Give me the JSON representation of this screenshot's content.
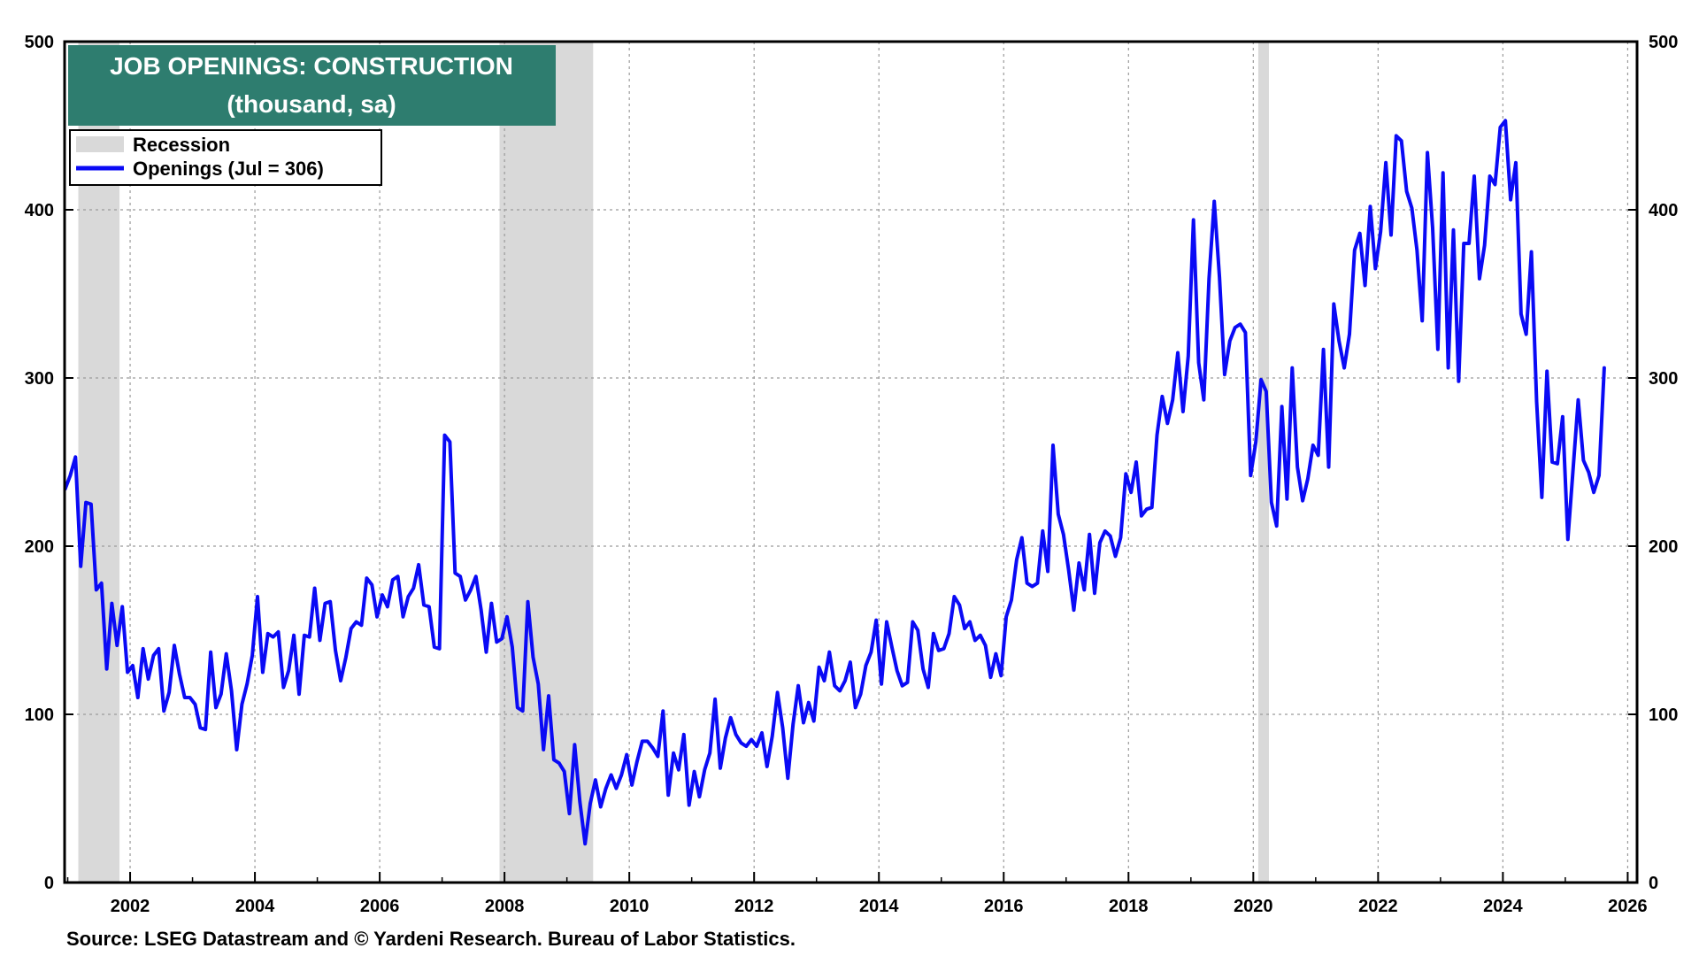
{
  "colors": {
    "series": "#0a0af5",
    "recession": "#d9d9d9",
    "title_bg": "#2e7d6f",
    "grid": "#9a9a9a"
  },
  "source": "Source: LSEG Datastream and © Yardeni Research. Bureau of Labor Statistics.",
  "chart_data": {
    "type": "line",
    "title": "JOB OPENINGS: CONSTRUCTION",
    "subtitle": "(thousand, sa)",
    "ylim": [
      0,
      500
    ],
    "xlim": [
      2000.95,
      2026.15
    ],
    "yticks": [
      0,
      100,
      200,
      300,
      400,
      500
    ],
    "ytick_labels": [
      "0",
      "100",
      "200",
      "300",
      "400",
      "500"
    ],
    "xticks": [
      2002,
      2004,
      2006,
      2008,
      2010,
      2012,
      2014,
      2016,
      2018,
      2020,
      2022,
      2024,
      2026
    ],
    "xtick_labels": [
      "2002",
      "2004",
      "2006",
      "2008",
      "2010",
      "2012",
      "2014",
      "2016",
      "2018",
      "2020",
      "2022",
      "2024",
      "2026"
    ],
    "grid": true,
    "legend": {
      "position": "top-left",
      "recession_label": "Recession",
      "series_label": "Openings (Jul = 306)"
    },
    "recessions": [
      [
        2001.17,
        2001.83
      ],
      [
        2007.92,
        2009.42
      ],
      [
        2020.08,
        2020.25
      ]
    ],
    "series": [
      {
        "name": "Openings",
        "start": 2000.958,
        "step": 0.08333,
        "values": [
          234,
          242,
          253,
          188,
          226,
          225,
          174,
          178,
          127,
          166,
          141,
          164,
          125,
          129,
          110,
          139,
          121,
          135,
          139,
          102,
          113,
          141,
          124,
          110,
          110,
          106,
          92,
          91,
          137,
          104,
          112,
          136,
          114,
          79,
          106,
          118,
          135,
          170,
          125,
          148,
          146,
          149,
          116,
          126,
          147,
          112,
          147,
          146,
          175,
          144,
          166,
          167,
          138,
          120,
          134,
          151,
          155,
          153,
          181,
          177,
          158,
          171,
          164,
          180,
          182,
          158,
          170,
          175,
          189,
          165,
          164,
          140,
          139,
          266,
          262,
          184,
          182,
          168,
          174,
          182,
          162,
          137,
          166,
          143,
          145,
          158,
          140,
          104,
          102,
          167,
          134,
          118,
          79,
          111,
          73,
          71,
          66,
          41,
          82,
          48,
          23,
          47,
          61,
          45,
          56,
          64,
          56,
          64,
          76,
          58,
          72,
          84,
          84,
          80,
          75,
          102,
          52,
          77,
          67,
          88,
          46,
          66,
          51,
          67,
          77,
          109,
          68,
          86,
          98,
          88,
          83,
          81,
          85,
          81,
          89,
          69,
          87,
          113,
          92,
          62,
          94,
          117,
          95,
          107,
          96,
          128,
          120,
          137,
          117,
          114,
          120,
          131,
          104,
          112,
          129,
          137,
          156,
          118,
          155,
          140,
          126,
          117,
          119,
          155,
          150,
          127,
          116,
          148,
          138,
          139,
          148,
          170,
          165,
          151,
          155,
          144,
          147,
          141,
          122,
          136,
          123,
          158,
          168,
          192,
          205,
          178,
          176,
          178,
          209,
          185,
          260,
          219,
          207,
          186,
          162,
          190,
          174,
          207,
          172,
          202,
          209,
          206,
          194,
          205,
          243,
          232,
          250,
          218,
          222,
          223,
          266,
          289,
          273,
          287,
          315,
          280,
          313,
          394,
          309,
          287,
          359,
          405,
          360,
          302,
          322,
          330,
          332,
          327,
          242,
          262,
          299,
          292,
          226,
          212,
          283,
          228,
          306,
          247,
          227,
          240,
          260,
          254,
          317,
          247,
          344,
          322,
          306,
          326,
          376,
          386,
          355,
          402,
          365,
          387,
          428,
          385,
          444,
          441,
          411,
          401,
          376,
          334,
          434,
          389,
          317,
          422,
          306,
          388,
          298,
          380,
          380,
          420,
          359,
          379,
          420,
          415,
          449,
          453,
          406,
          428,
          338,
          326,
          375,
          286,
          229,
          304,
          250,
          249,
          277,
          204,
          245,
          287,
          251,
          244,
          232,
          242,
          306
        ]
      }
    ]
  }
}
